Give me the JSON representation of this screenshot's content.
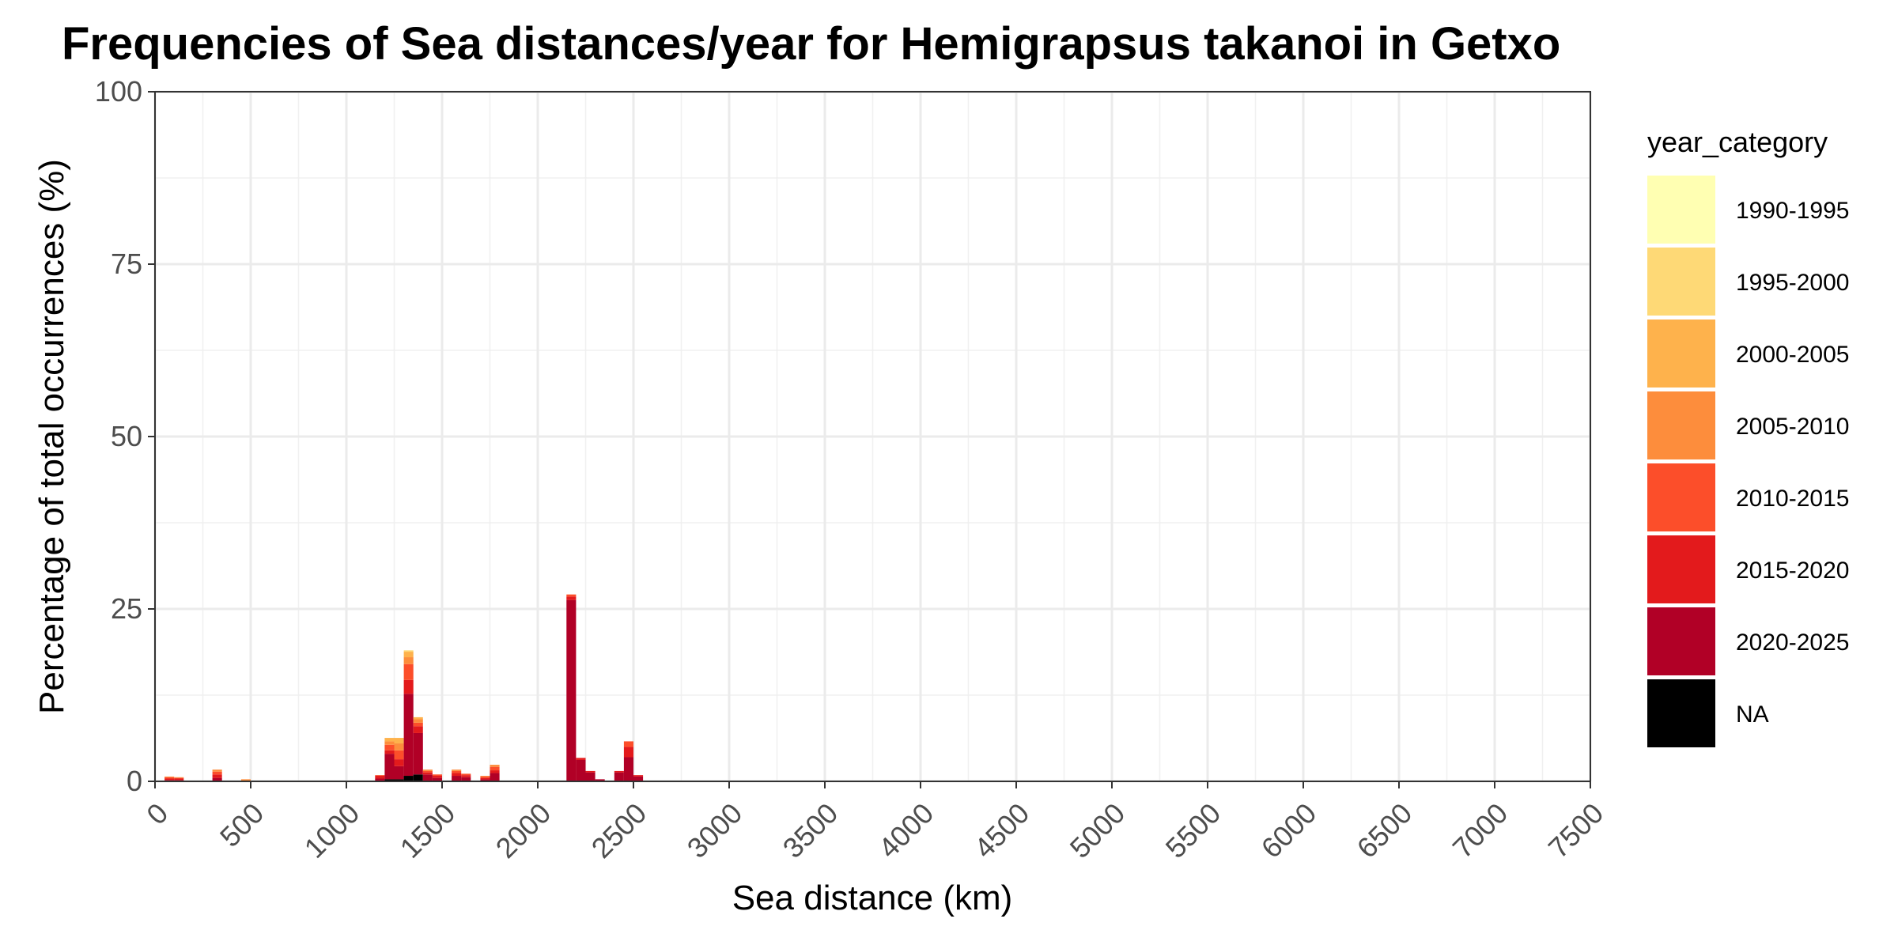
{
  "chart_data": {
    "type": "bar",
    "stacked": true,
    "title": "Frequencies of Sea distances/year for Hemigrapsus takanoi in Getxo",
    "xlabel": "Sea distance (km)",
    "ylabel": "Percentage of total occurrences (%)",
    "xlim": [
      0,
      7500
    ],
    "ylim": [
      0,
      100
    ],
    "x_ticks": [
      0,
      500,
      1000,
      1500,
      2000,
      2500,
      3000,
      3500,
      4000,
      4500,
      5000,
      5500,
      6000,
      6500,
      7000,
      7500
    ],
    "y_ticks": [
      0,
      25,
      50,
      75,
      100
    ],
    "bin_width": 50,
    "grid": true,
    "legend_position": "right",
    "legend_title": "year_category",
    "series": [
      {
        "name": "NA",
        "color": "#000000"
      },
      {
        "name": "2020-2025",
        "color": "#B10026"
      },
      {
        "name": "2015-2020",
        "color": "#E31A1C"
      },
      {
        "name": "2010-2015",
        "color": "#FC4E2A"
      },
      {
        "name": "2005-2010",
        "color": "#FD8D3C"
      },
      {
        "name": "2000-2005",
        "color": "#FEB24C"
      },
      {
        "name": "1995-2000",
        "color": "#FED976"
      },
      {
        "name": "1990-1995",
        "color": "#FFFFB2"
      }
    ],
    "legend_order": [
      "1990-1995",
      "1995-2000",
      "2000-2005",
      "2005-2010",
      "2010-2015",
      "2015-2020",
      "2020-2025",
      "NA"
    ],
    "bins": [
      {
        "x": 75,
        "values": {
          "NA": 0,
          "2020-2025": 0.2,
          "2015-2020": 0.2,
          "2010-2015": 0.2,
          "2005-2010": 0.1
        }
      },
      {
        "x": 125,
        "values": {
          "NA": 0,
          "2020-2025": 0.2,
          "2015-2020": 0.2,
          "2010-2015": 0.1,
          "2005-2010": 0.1
        }
      },
      {
        "x": 325,
        "values": {
          "NA": 0,
          "2020-2025": 0.5,
          "2015-2020": 0.5,
          "2010-2015": 0.4,
          "2005-2010": 0.3
        }
      },
      {
        "x": 475,
        "values": {
          "NA": 0,
          "2020-2025": 0,
          "2015-2020": 0,
          "2010-2015": 0,
          "2005-2010": 0.3
        }
      },
      {
        "x": 1175,
        "values": {
          "NA": 0,
          "2020-2025": 0.4,
          "2015-2020": 0.4,
          "2010-2015": 0.1
        }
      },
      {
        "x": 1225,
        "values": {
          "NA": 0.3,
          "2020-2025": 3.7,
          "2015-2020": 0.5,
          "2010-2015": 0.8,
          "2005-2010": 0.5,
          "2000-2005": 0.5
        }
      },
      {
        "x": 1275,
        "values": {
          "NA": 0.3,
          "2020-2025": 1.9,
          "2015-2020": 1.0,
          "2010-2015": 1.3,
          "2005-2010": 1.0,
          "2000-2005": 0.8
        }
      },
      {
        "x": 1325,
        "values": {
          "NA": 0.8,
          "2020-2025": 11.9,
          "2015-2020": 2.0,
          "2010-2015": 2.3,
          "2005-2010": 1.0,
          "2000-2005": 0.8,
          "1995-2000": 0.2
        }
      },
      {
        "x": 1375,
        "values": {
          "NA": 1.0,
          "2020-2025": 6.0,
          "2015-2020": 1.0,
          "2010-2015": 0.5,
          "2005-2010": 0.5,
          "2000-2005": 0.3
        }
      },
      {
        "x": 1425,
        "values": {
          "NA": 0,
          "2020-2025": 1.0,
          "2015-2020": 0.3,
          "2010-2015": 0.2,
          "2005-2010": 0.2
        }
      },
      {
        "x": 1475,
        "values": {
          "NA": 0,
          "2020-2025": 0.5,
          "2015-2020": 0.3,
          "2010-2015": 0.2
        }
      },
      {
        "x": 1575,
        "values": {
          "NA": 0,
          "2020-2025": 0.8,
          "2015-2020": 0.4,
          "2010-2015": 0.3,
          "2005-2010": 0.2
        }
      },
      {
        "x": 1625,
        "values": {
          "NA": 0,
          "2020-2025": 0.6,
          "2015-2020": 0.3,
          "2010-2015": 0.2
        }
      },
      {
        "x": 1725,
        "values": {
          "NA": 0,
          "2020-2025": 0.3,
          "2015-2020": 0.2,
          "2010-2015": 0.2,
          "2005-2010": 0.1
        }
      },
      {
        "x": 1775,
        "values": {
          "NA": 0,
          "2020-2025": 1.2,
          "2015-2020": 0.4,
          "2010-2015": 0.5,
          "2005-2010": 0.3
        }
      },
      {
        "x": 2175,
        "values": {
          "NA": 0,
          "2020-2025": 26.3,
          "2015-2020": 0.5,
          "2010-2015": 0.3
        }
      },
      {
        "x": 2225,
        "values": {
          "NA": 0,
          "2020-2025": 3.1,
          "2015-2020": 0.3
        }
      },
      {
        "x": 2275,
        "values": {
          "NA": 0,
          "2020-2025": 1.3,
          "2015-2020": 0.2
        }
      },
      {
        "x": 2325,
        "values": {
          "NA": 0,
          "2020-2025": 0.3
        }
      },
      {
        "x": 2425,
        "values": {
          "NA": 0,
          "2020-2025": 1.3,
          "2015-2020": 0.2
        }
      },
      {
        "x": 2475,
        "values": {
          "NA": 0,
          "2020-2025": 3.5,
          "2015-2020": 1.5,
          "2010-2015": 0.8
        }
      },
      {
        "x": 2525,
        "values": {
          "NA": 0,
          "2020-2025": 0.7,
          "2015-2020": 0.2
        }
      }
    ]
  }
}
